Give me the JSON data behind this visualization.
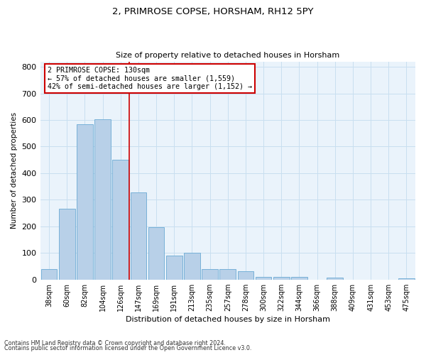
{
  "title1": "2, PRIMROSE COPSE, HORSHAM, RH12 5PY",
  "title2": "Size of property relative to detached houses in Horsham",
  "xlabel": "Distribution of detached houses by size in Horsham",
  "ylabel": "Number of detached properties",
  "categories": [
    "38sqm",
    "60sqm",
    "82sqm",
    "104sqm",
    "126sqm",
    "147sqm",
    "169sqm",
    "191sqm",
    "213sqm",
    "235sqm",
    "257sqm",
    "278sqm",
    "300sqm",
    "322sqm",
    "344sqm",
    "366sqm",
    "388sqm",
    "409sqm",
    "431sqm",
    "453sqm",
    "475sqm"
  ],
  "values": [
    38,
    265,
    585,
    603,
    450,
    327,
    197,
    90,
    101,
    38,
    38,
    32,
    11,
    11,
    10,
    0,
    8,
    0,
    0,
    0,
    4
  ],
  "bar_color": "#b8d0e8",
  "bar_edge_color": "#6aaad4",
  "annotation_text": "2 PRIMROSE COPSE: 130sqm\n← 57% of detached houses are smaller (1,559)\n42% of semi-detached houses are larger (1,152) →",
  "annotation_box_color": "#ffffff",
  "annotation_box_edge": "#cc0000",
  "vline_color": "#cc0000",
  "grid_color": "#c8dff0",
  "background_color": "#eaf3fb",
  "footnote1": "Contains HM Land Registry data © Crown copyright and database right 2024.",
  "footnote2": "Contains public sector information licensed under the Open Government Licence v3.0.",
  "ylim": [
    0,
    820
  ],
  "yticks": [
    0,
    100,
    200,
    300,
    400,
    500,
    600,
    700,
    800
  ]
}
